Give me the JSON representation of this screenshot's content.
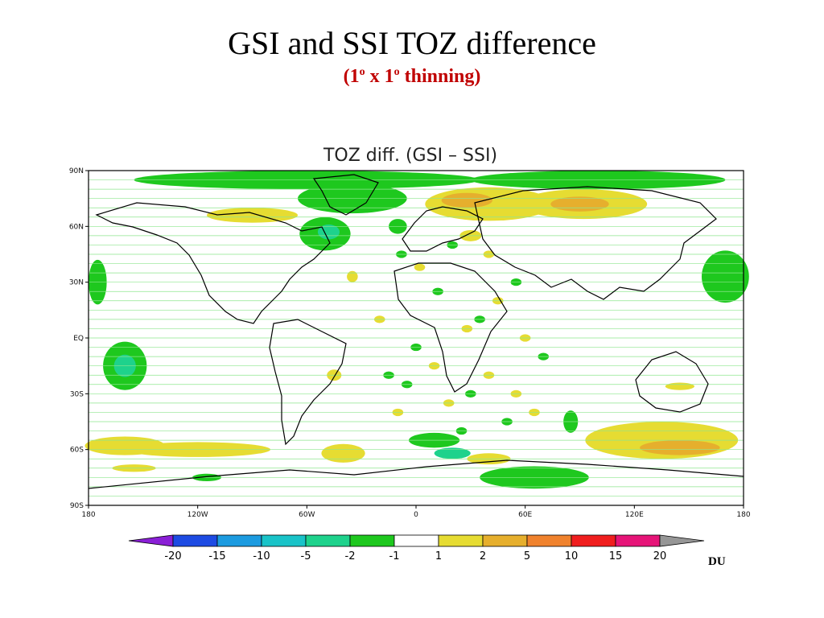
{
  "slide": {
    "title": "GSI and SSI TOZ difference",
    "subtitle_parts": [
      "(1",
      "o",
      " x 1",
      "o",
      " thinning)"
    ]
  },
  "chart_data": {
    "type": "heatmap",
    "title": "TOZ diff. (GSI – SSI)",
    "projection": "lat-lon map",
    "xlim": [
      -180,
      180
    ],
    "ylim": [
      -90,
      90
    ],
    "x_ticks": [
      {
        "value": -180,
        "label": "180"
      },
      {
        "value": -120,
        "label": "120W"
      },
      {
        "value": -60,
        "label": "60W"
      },
      {
        "value": 0,
        "label": "0"
      },
      {
        "value": 60,
        "label": "60E"
      },
      {
        "value": 120,
        "label": "120E"
      },
      {
        "value": 180,
        "label": "180"
      }
    ],
    "y_ticks": [
      {
        "value": 90,
        "label": "90N"
      },
      {
        "value": 60,
        "label": "60N"
      },
      {
        "value": 30,
        "label": "30N"
      },
      {
        "value": 0,
        "label": "EQ"
      },
      {
        "value": -30,
        "label": "30S"
      },
      {
        "value": -60,
        "label": "60S"
      },
      {
        "value": -90,
        "label": "90S"
      }
    ],
    "colorbar": {
      "unit": "DU",
      "levels": [
        "-20",
        "-15",
        "-10",
        "-5",
        "-2",
        "-1",
        "1",
        "2",
        "5",
        "10",
        "15",
        "20"
      ],
      "colors": [
        "#8a1fd6",
        "#1d4be3",
        "#1c9be0",
        "#19c3c8",
        "#1ed28c",
        "#1ec81e",
        "#ffffff",
        "#e6dc32",
        "#e6af2d",
        "#f0822d",
        "#f01e1e",
        "#e61478",
        "#969696"
      ]
    },
    "regions": [
      {
        "lon": -60,
        "lat": 85,
        "rx": 95,
        "ry": 5,
        "value": -1.5
      },
      {
        "lon": 100,
        "lat": 85,
        "rx": 70,
        "ry": 5,
        "value": -1.5
      },
      {
        "lon": -35,
        "lat": 75,
        "rx": 30,
        "ry": 8,
        "value": -1.5
      },
      {
        "lon": 40,
        "lat": 72,
        "rx": 35,
        "ry": 9,
        "value": 1.5
      },
      {
        "lon": 28,
        "lat": 74,
        "rx": 14,
        "ry": 4,
        "value": 3
      },
      {
        "lon": 92,
        "lat": 72,
        "rx": 35,
        "ry": 8,
        "value": 1.5
      },
      {
        "lon": 90,
        "lat": 72,
        "rx": 16,
        "ry": 4,
        "value": 3
      },
      {
        "lon": -90,
        "lat": 66,
        "rx": 25,
        "ry": 4,
        "value": 1.5
      },
      {
        "lon": -50,
        "lat": 56,
        "rx": 14,
        "ry": 9,
        "value": -1.5
      },
      {
        "lon": -48,
        "lat": 57,
        "rx": 6,
        "ry": 4,
        "value": -3.5
      },
      {
        "lon": -175,
        "lat": 30,
        "rx": 5,
        "ry": 12,
        "value": -1.5
      },
      {
        "lon": 170,
        "lat": 33,
        "rx": 13,
        "ry": 14,
        "value": -1.5
      },
      {
        "lon": -160,
        "lat": -15,
        "rx": 12,
        "ry": 13,
        "value": -1.5
      },
      {
        "lon": -160,
        "lat": -15,
        "rx": 6,
        "ry": 6,
        "value": -3.5
      },
      {
        "lon": -45,
        "lat": -20,
        "rx": 4,
        "ry": 3,
        "value": 1.5
      },
      {
        "lon": -35,
        "lat": 33,
        "rx": 3,
        "ry": 3,
        "value": 1.5
      },
      {
        "lon": -160,
        "lat": -58,
        "rx": 22,
        "ry": 5,
        "value": 1.5
      },
      {
        "lon": -120,
        "lat": -60,
        "rx": 40,
        "ry": 4,
        "value": 1.5
      },
      {
        "lon": -155,
        "lat": -70,
        "rx": 12,
        "ry": 2,
        "value": 1.5
      },
      {
        "lon": -115,
        "lat": -75,
        "rx": 8,
        "ry": 2,
        "value": -1.5
      },
      {
        "lon": -40,
        "lat": -62,
        "rx": 12,
        "ry": 5,
        "value": 1.5
      },
      {
        "lon": 135,
        "lat": -55,
        "rx": 42,
        "ry": 10,
        "value": 1.5
      },
      {
        "lon": 145,
        "lat": -59,
        "rx": 22,
        "ry": 4,
        "value": 3
      },
      {
        "lon": 65,
        "lat": -75,
        "rx": 30,
        "ry": 6,
        "value": -1.5
      },
      {
        "lon": 10,
        "lat": -55,
        "rx": 14,
        "ry": 4,
        "value": -1.5
      },
      {
        "lon": 20,
        "lat": -62,
        "rx": 10,
        "ry": 3,
        "value": -3.5
      },
      {
        "lon": 40,
        "lat": -65,
        "rx": 12,
        "ry": 3,
        "value": 1.5
      },
      {
        "lon": 85,
        "lat": -45,
        "rx": 4,
        "ry": 6,
        "value": -1.5
      },
      {
        "lon": 145,
        "lat": -26,
        "rx": 8,
        "ry": 2,
        "value": 1.5
      },
      {
        "lon": 30,
        "lat": 55,
        "rx": 6,
        "ry": 3,
        "value": 1.5
      },
      {
        "lon": -10,
        "lat": 60,
        "rx": 5,
        "ry": 4,
        "value": -1.5
      }
    ],
    "scatter_cells": [
      [
        -8,
        45
      ],
      [
        2,
        38
      ],
      [
        12,
        25
      ],
      [
        -20,
        10
      ],
      [
        0,
        -5
      ],
      [
        10,
        -15
      ],
      [
        -5,
        -25
      ],
      [
        18,
        -35
      ],
      [
        30,
        -30
      ],
      [
        40,
        -20
      ],
      [
        35,
        10
      ],
      [
        45,
        20
      ],
      [
        55,
        30
      ],
      [
        60,
        0
      ],
      [
        70,
        -10
      ],
      [
        55,
        -30
      ],
      [
        50,
        -45
      ],
      [
        65,
        -40
      ],
      [
        25,
        -50
      ],
      [
        -10,
        -40
      ],
      [
        -15,
        -20
      ],
      [
        28,
        5
      ],
      [
        20,
        50
      ],
      [
        40,
        45
      ]
    ]
  }
}
